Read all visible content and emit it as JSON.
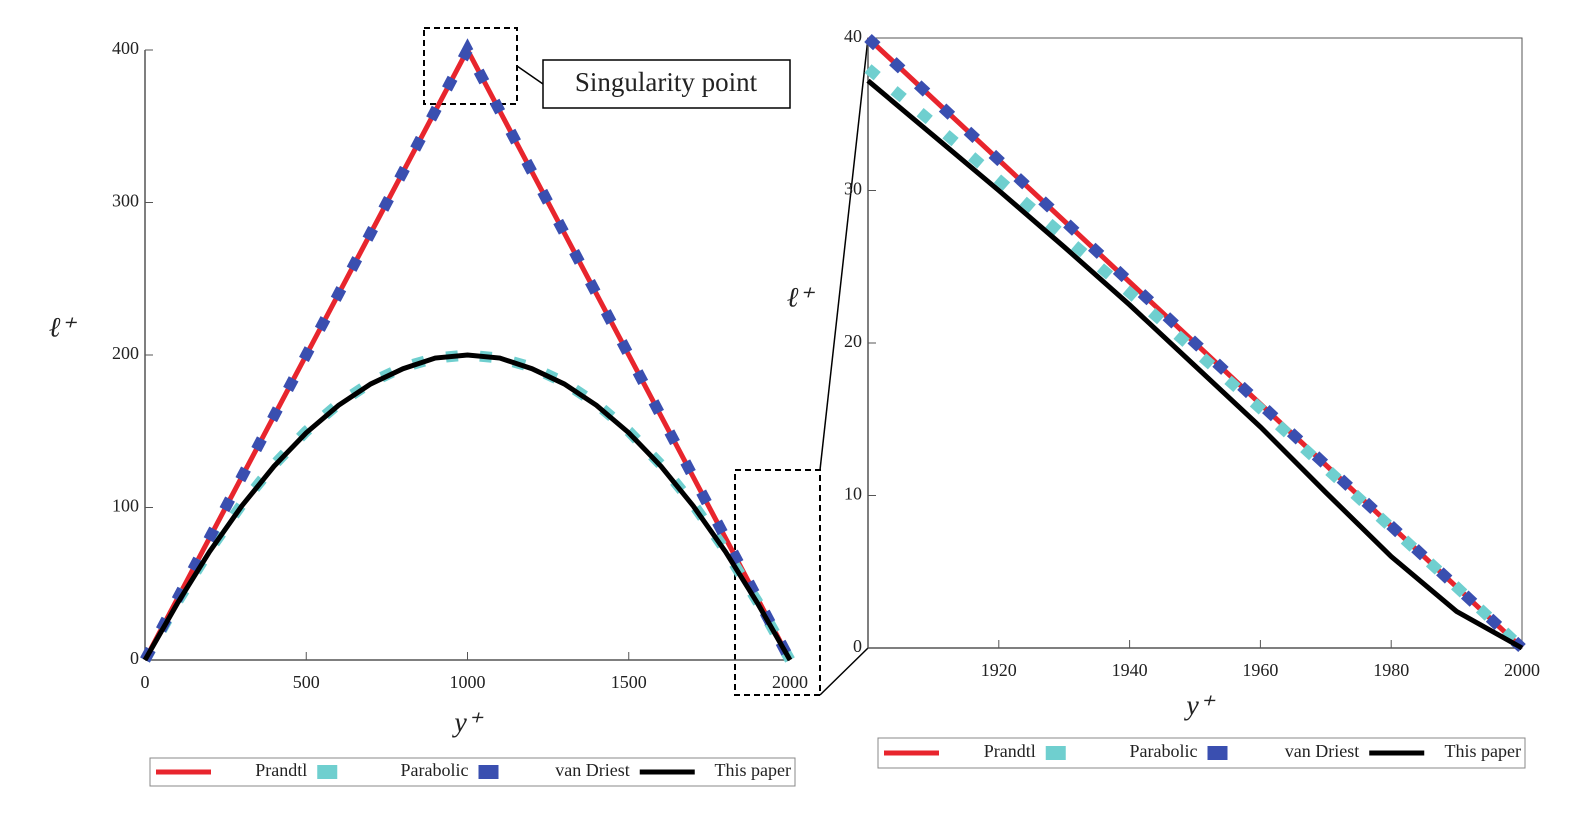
{
  "chart_data": [
    {
      "type": "line",
      "xlabel": "y⁺",
      "ylabel": "ℓ⁺",
      "annotation": "Singularity point",
      "x": [
        0,
        100,
        200,
        300,
        400,
        500,
        600,
        700,
        800,
        900,
        1000,
        1100,
        1200,
        1300,
        1400,
        1500,
        1600,
        1700,
        1800,
        1900,
        2000
      ],
      "series": [
        {
          "name": "Prandtl",
          "color": "#e8252d",
          "line_style": "solid",
          "values": [
            0,
            40,
            80,
            120,
            160,
            200,
            240,
            280,
            320,
            360,
            400,
            360,
            320,
            280,
            240,
            200,
            160,
            120,
            80,
            40,
            0
          ]
        },
        {
          "name": "Parabolic",
          "color": "#6fcfcf",
          "line_style": "dashed",
          "values": [
            0,
            38,
            72,
            102,
            128,
            150,
            168,
            182,
            192,
            198,
            200,
            198,
            192,
            182,
            168,
            150,
            128,
            102,
            72,
            38,
            0
          ]
        },
        {
          "name": "van Driest",
          "color": "#3a4fb0",
          "line_style": "dashed",
          "values": [
            0,
            40,
            80,
            120,
            160,
            200,
            240,
            280,
            320,
            360,
            400,
            360,
            320,
            280,
            240,
            200,
            160,
            120,
            80,
            40,
            0
          ]
        },
        {
          "name": "This paper",
          "color": "#000000",
          "line_style": "solid",
          "values": [
            0,
            37,
            71,
            101,
            127,
            149,
            167,
            181,
            191,
            198,
            200,
            198,
            191,
            181,
            167,
            149,
            127,
            101,
            71,
            37,
            0
          ]
        }
      ],
      "xlim": [
        0,
        2000
      ],
      "xticks": [
        0,
        500,
        1000,
        1500,
        2000
      ],
      "ylim": [
        0,
        400
      ],
      "yticks": [
        0,
        100,
        200,
        300,
        400
      ],
      "legend": "bottom"
    },
    {
      "type": "line",
      "xlabel": "y⁺",
      "ylabel": "ℓ⁺",
      "x": [
        1900,
        1910,
        1920,
        1930,
        1940,
        1950,
        1960,
        1970,
        1980,
        1990,
        2000
      ],
      "series": [
        {
          "name": "Prandtl",
          "color": "#e8252d",
          "line_style": "solid",
          "values": [
            40,
            36,
            32,
            28,
            24,
            20,
            16,
            12,
            8,
            4,
            0
          ]
        },
        {
          "name": "Parabolic",
          "color": "#6fcfcf",
          "line_style": "dashed",
          "values": [
            38,
            34.4,
            30.7,
            27,
            23.3,
            19.5,
            15.7,
            11.8,
            7.9,
            4,
            0
          ]
        },
        {
          "name": "van Driest",
          "color": "#3a4fb0",
          "line_style": "dashed",
          "values": [
            40,
            36,
            32,
            28,
            24,
            20,
            16,
            12,
            8,
            4,
            0
          ]
        },
        {
          "name": "This paper",
          "color": "#000000",
          "line_style": "solid",
          "values": [
            37.2,
            33.6,
            30,
            26.3,
            22.5,
            18.5,
            14.5,
            10.2,
            6,
            2.4,
            0
          ]
        }
      ],
      "xlim": [
        1900,
        2000
      ],
      "xticks": [
        1920,
        1940,
        1960,
        1980,
        2000
      ],
      "ylim": [
        0,
        40
      ],
      "yticks": [
        0,
        10,
        20,
        30,
        40
      ],
      "legend": "bottom"
    }
  ]
}
